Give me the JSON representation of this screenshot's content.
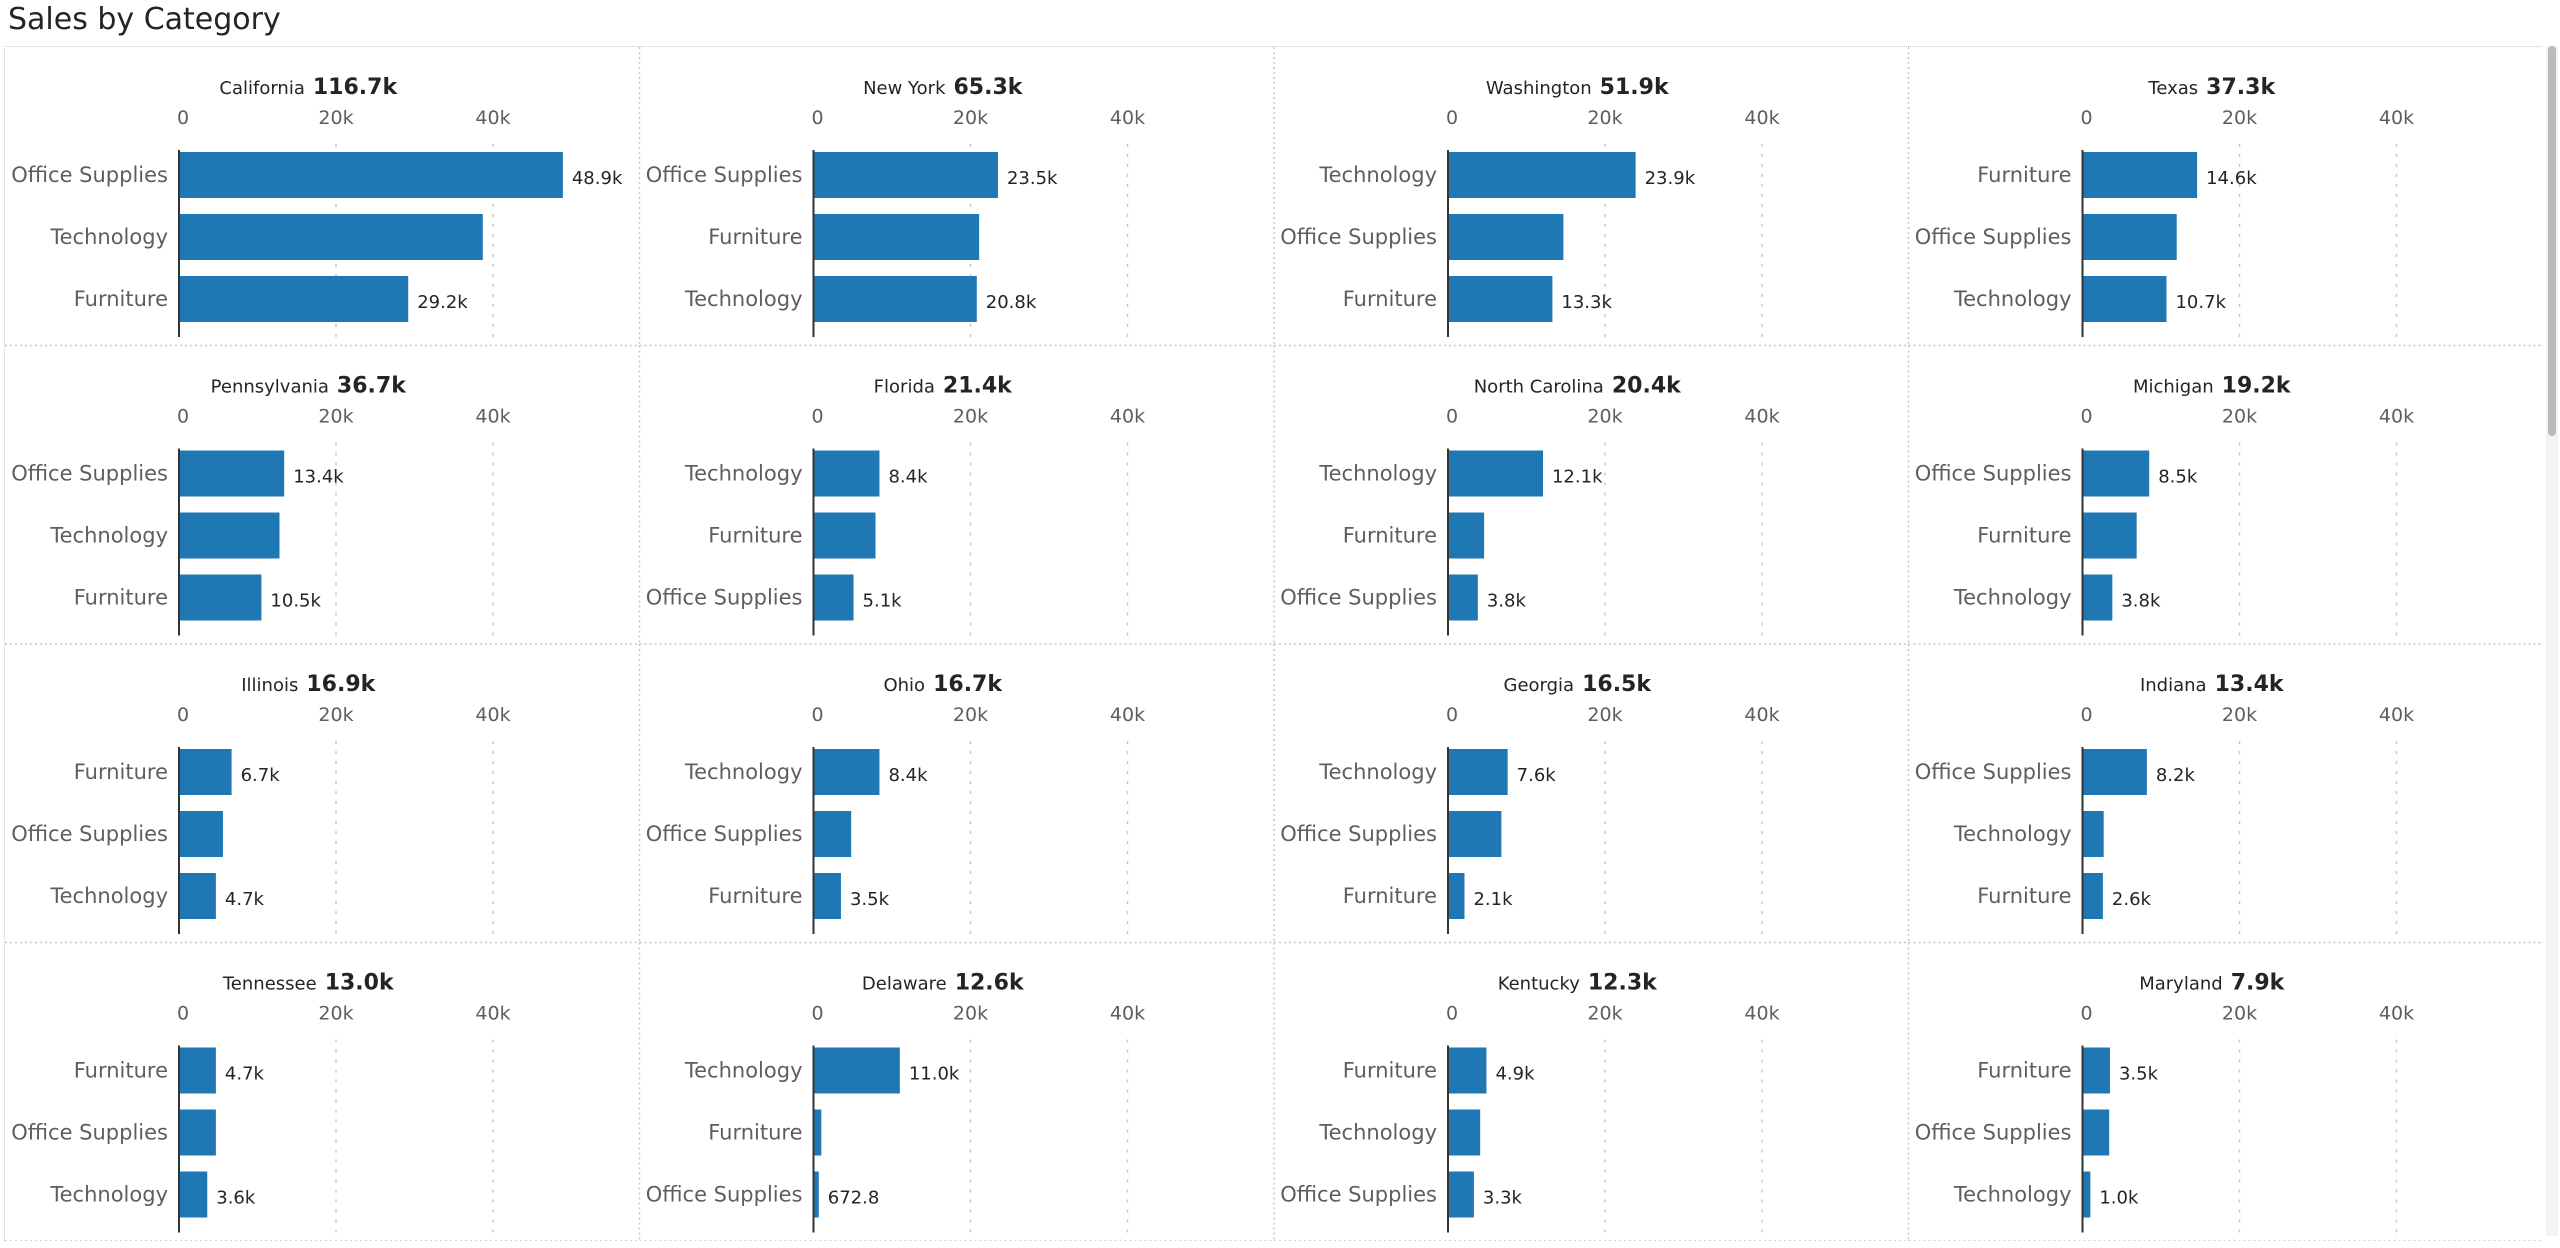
{
  "title": "Sales by Category",
  "colors": {
    "bar": "#1f77b4",
    "axis": "#333333",
    "grid": "#c8c8c8",
    "text": "#605e5c",
    "panel_title": "#252423"
  },
  "chart_data": [
    {
      "type": "bar",
      "title": "California",
      "total": "116.7k",
      "categories": [
        "Office Supplies",
        "Technology",
        "Furniture"
      ],
      "values": [
        48900,
        38700,
        29200
      ],
      "labels": [
        "48.9k",
        "",
        "29.2k"
      ],
      "xticks": [
        "0",
        "20k",
        "40k"
      ],
      "xlim": [
        0,
        60000
      ],
      "grid": true
    },
    {
      "type": "bar",
      "title": "New York",
      "total": "65.3k",
      "categories": [
        "Office Supplies",
        "Furniture",
        "Technology"
      ],
      "values": [
        23500,
        21100,
        20800
      ],
      "labels": [
        "23.5k",
        "",
        "20.8k"
      ],
      "xticks": [
        "0",
        "20k",
        "40k"
      ],
      "xlim": [
        0,
        60000
      ],
      "grid": true
    },
    {
      "type": "bar",
      "title": "Washington",
      "total": "51.9k",
      "categories": [
        "Technology",
        "Office Supplies",
        "Furniture"
      ],
      "values": [
        23900,
        14700,
        13300
      ],
      "labels": [
        "23.9k",
        "",
        "13.3k"
      ],
      "xticks": [
        "0",
        "20k",
        "40k"
      ],
      "xlim": [
        0,
        60000
      ],
      "grid": true
    },
    {
      "type": "bar",
      "title": "Texas",
      "total": "37.3k",
      "categories": [
        "Furniture",
        "Office Supplies",
        "Technology"
      ],
      "values": [
        14600,
        12000,
        10700
      ],
      "labels": [
        "14.6k",
        "",
        "10.7k"
      ],
      "xticks": [
        "0",
        "20k",
        "40k"
      ],
      "xlim": [
        0,
        60000
      ],
      "grid": true
    },
    {
      "type": "bar",
      "title": "Pennsylvania",
      "total": "36.7k",
      "categories": [
        "Office Supplies",
        "Technology",
        "Furniture"
      ],
      "values": [
        13400,
        12800,
        10500
      ],
      "labels": [
        "13.4k",
        "",
        "10.5k"
      ],
      "xticks": [
        "0",
        "20k",
        "40k"
      ],
      "xlim": [
        0,
        60000
      ],
      "grid": true
    },
    {
      "type": "bar",
      "title": "Florida",
      "total": "21.4k",
      "categories": [
        "Technology",
        "Furniture",
        "Office Supplies"
      ],
      "values": [
        8400,
        7900,
        5100
      ],
      "labels": [
        "8.4k",
        "",
        "5.1k"
      ],
      "xticks": [
        "0",
        "20k",
        "40k"
      ],
      "xlim": [
        0,
        60000
      ],
      "grid": true
    },
    {
      "type": "bar",
      "title": "North Carolina",
      "total": "20.4k",
      "categories": [
        "Technology",
        "Furniture",
        "Office Supplies"
      ],
      "values": [
        12100,
        4600,
        3800
      ],
      "labels": [
        "12.1k",
        "",
        "3.8k"
      ],
      "xticks": [
        "0",
        "20k",
        "40k"
      ],
      "xlim": [
        0,
        60000
      ],
      "grid": true
    },
    {
      "type": "bar",
      "title": "Michigan",
      "total": "19.2k",
      "categories": [
        "Office Supplies",
        "Furniture",
        "Technology"
      ],
      "values": [
        8500,
        6900,
        3800
      ],
      "labels": [
        "8.5k",
        "",
        "3.8k"
      ],
      "xticks": [
        "0",
        "20k",
        "40k"
      ],
      "xlim": [
        0,
        60000
      ],
      "grid": true
    },
    {
      "type": "bar",
      "title": "Illinois",
      "total": "16.9k",
      "categories": [
        "Furniture",
        "Office Supplies",
        "Technology"
      ],
      "values": [
        6700,
        5600,
        4700
      ],
      "labels": [
        "6.7k",
        "",
        "4.7k"
      ],
      "xticks": [
        "0",
        "20k",
        "40k"
      ],
      "xlim": [
        0,
        60000
      ],
      "grid": true
    },
    {
      "type": "bar",
      "title": "Ohio",
      "total": "16.7k",
      "categories": [
        "Technology",
        "Office Supplies",
        "Furniture"
      ],
      "values": [
        8400,
        4800,
        3500
      ],
      "labels": [
        "8.4k",
        "",
        "3.5k"
      ],
      "xticks": [
        "0",
        "20k",
        "40k"
      ],
      "xlim": [
        0,
        60000
      ],
      "grid": true
    },
    {
      "type": "bar",
      "title": "Georgia",
      "total": "16.5k",
      "categories": [
        "Technology",
        "Office Supplies",
        "Furniture"
      ],
      "values": [
        7600,
        6800,
        2100
      ],
      "labels": [
        "7.6k",
        "",
        "2.1k"
      ],
      "xticks": [
        "0",
        "20k",
        "40k"
      ],
      "xlim": [
        0,
        60000
      ],
      "grid": true
    },
    {
      "type": "bar",
      "title": "Indiana",
      "total": "13.4k",
      "categories": [
        "Office Supplies",
        "Technology",
        "Furniture"
      ],
      "values": [
        8200,
        2700,
        2600
      ],
      "labels": [
        "8.2k",
        "",
        "2.6k"
      ],
      "xticks": [
        "0",
        "20k",
        "40k"
      ],
      "xlim": [
        0,
        60000
      ],
      "grid": true
    },
    {
      "type": "bar",
      "title": "Tennessee",
      "total": "13.0k",
      "categories": [
        "Furniture",
        "Office Supplies",
        "Technology"
      ],
      "values": [
        4700,
        4700,
        3600
      ],
      "labels": [
        "4.7k",
        "",
        "3.6k"
      ],
      "xticks": [
        "0",
        "20k",
        "40k"
      ],
      "xlim": [
        0,
        60000
      ],
      "grid": true
    },
    {
      "type": "bar",
      "title": "Delaware",
      "total": "12.6k",
      "categories": [
        "Technology",
        "Furniture",
        "Office Supplies"
      ],
      "values": [
        11000,
        1000,
        672.8
      ],
      "labels": [
        "11.0k",
        "",
        "672.8"
      ],
      "xticks": [
        "0",
        "20k",
        "40k"
      ],
      "xlim": [
        0,
        60000
      ],
      "grid": true
    },
    {
      "type": "bar",
      "title": "Kentucky",
      "total": "12.3k",
      "categories": [
        "Furniture",
        "Technology",
        "Office Supplies"
      ],
      "values": [
        4900,
        4100,
        3300
      ],
      "labels": [
        "4.9k",
        "",
        "3.3k"
      ],
      "xticks": [
        "0",
        "20k",
        "40k"
      ],
      "xlim": [
        0,
        60000
      ],
      "grid": true
    },
    {
      "type": "bar",
      "title": "Maryland",
      "total": "7.9k",
      "categories": [
        "Furniture",
        "Office Supplies",
        "Technology"
      ],
      "values": [
        3500,
        3400,
        1000
      ],
      "labels": [
        "3.5k",
        "",
        "1.0k"
      ],
      "xticks": [
        "0",
        "20k",
        "40k"
      ],
      "xlim": [
        0,
        60000
      ],
      "grid": true
    }
  ]
}
